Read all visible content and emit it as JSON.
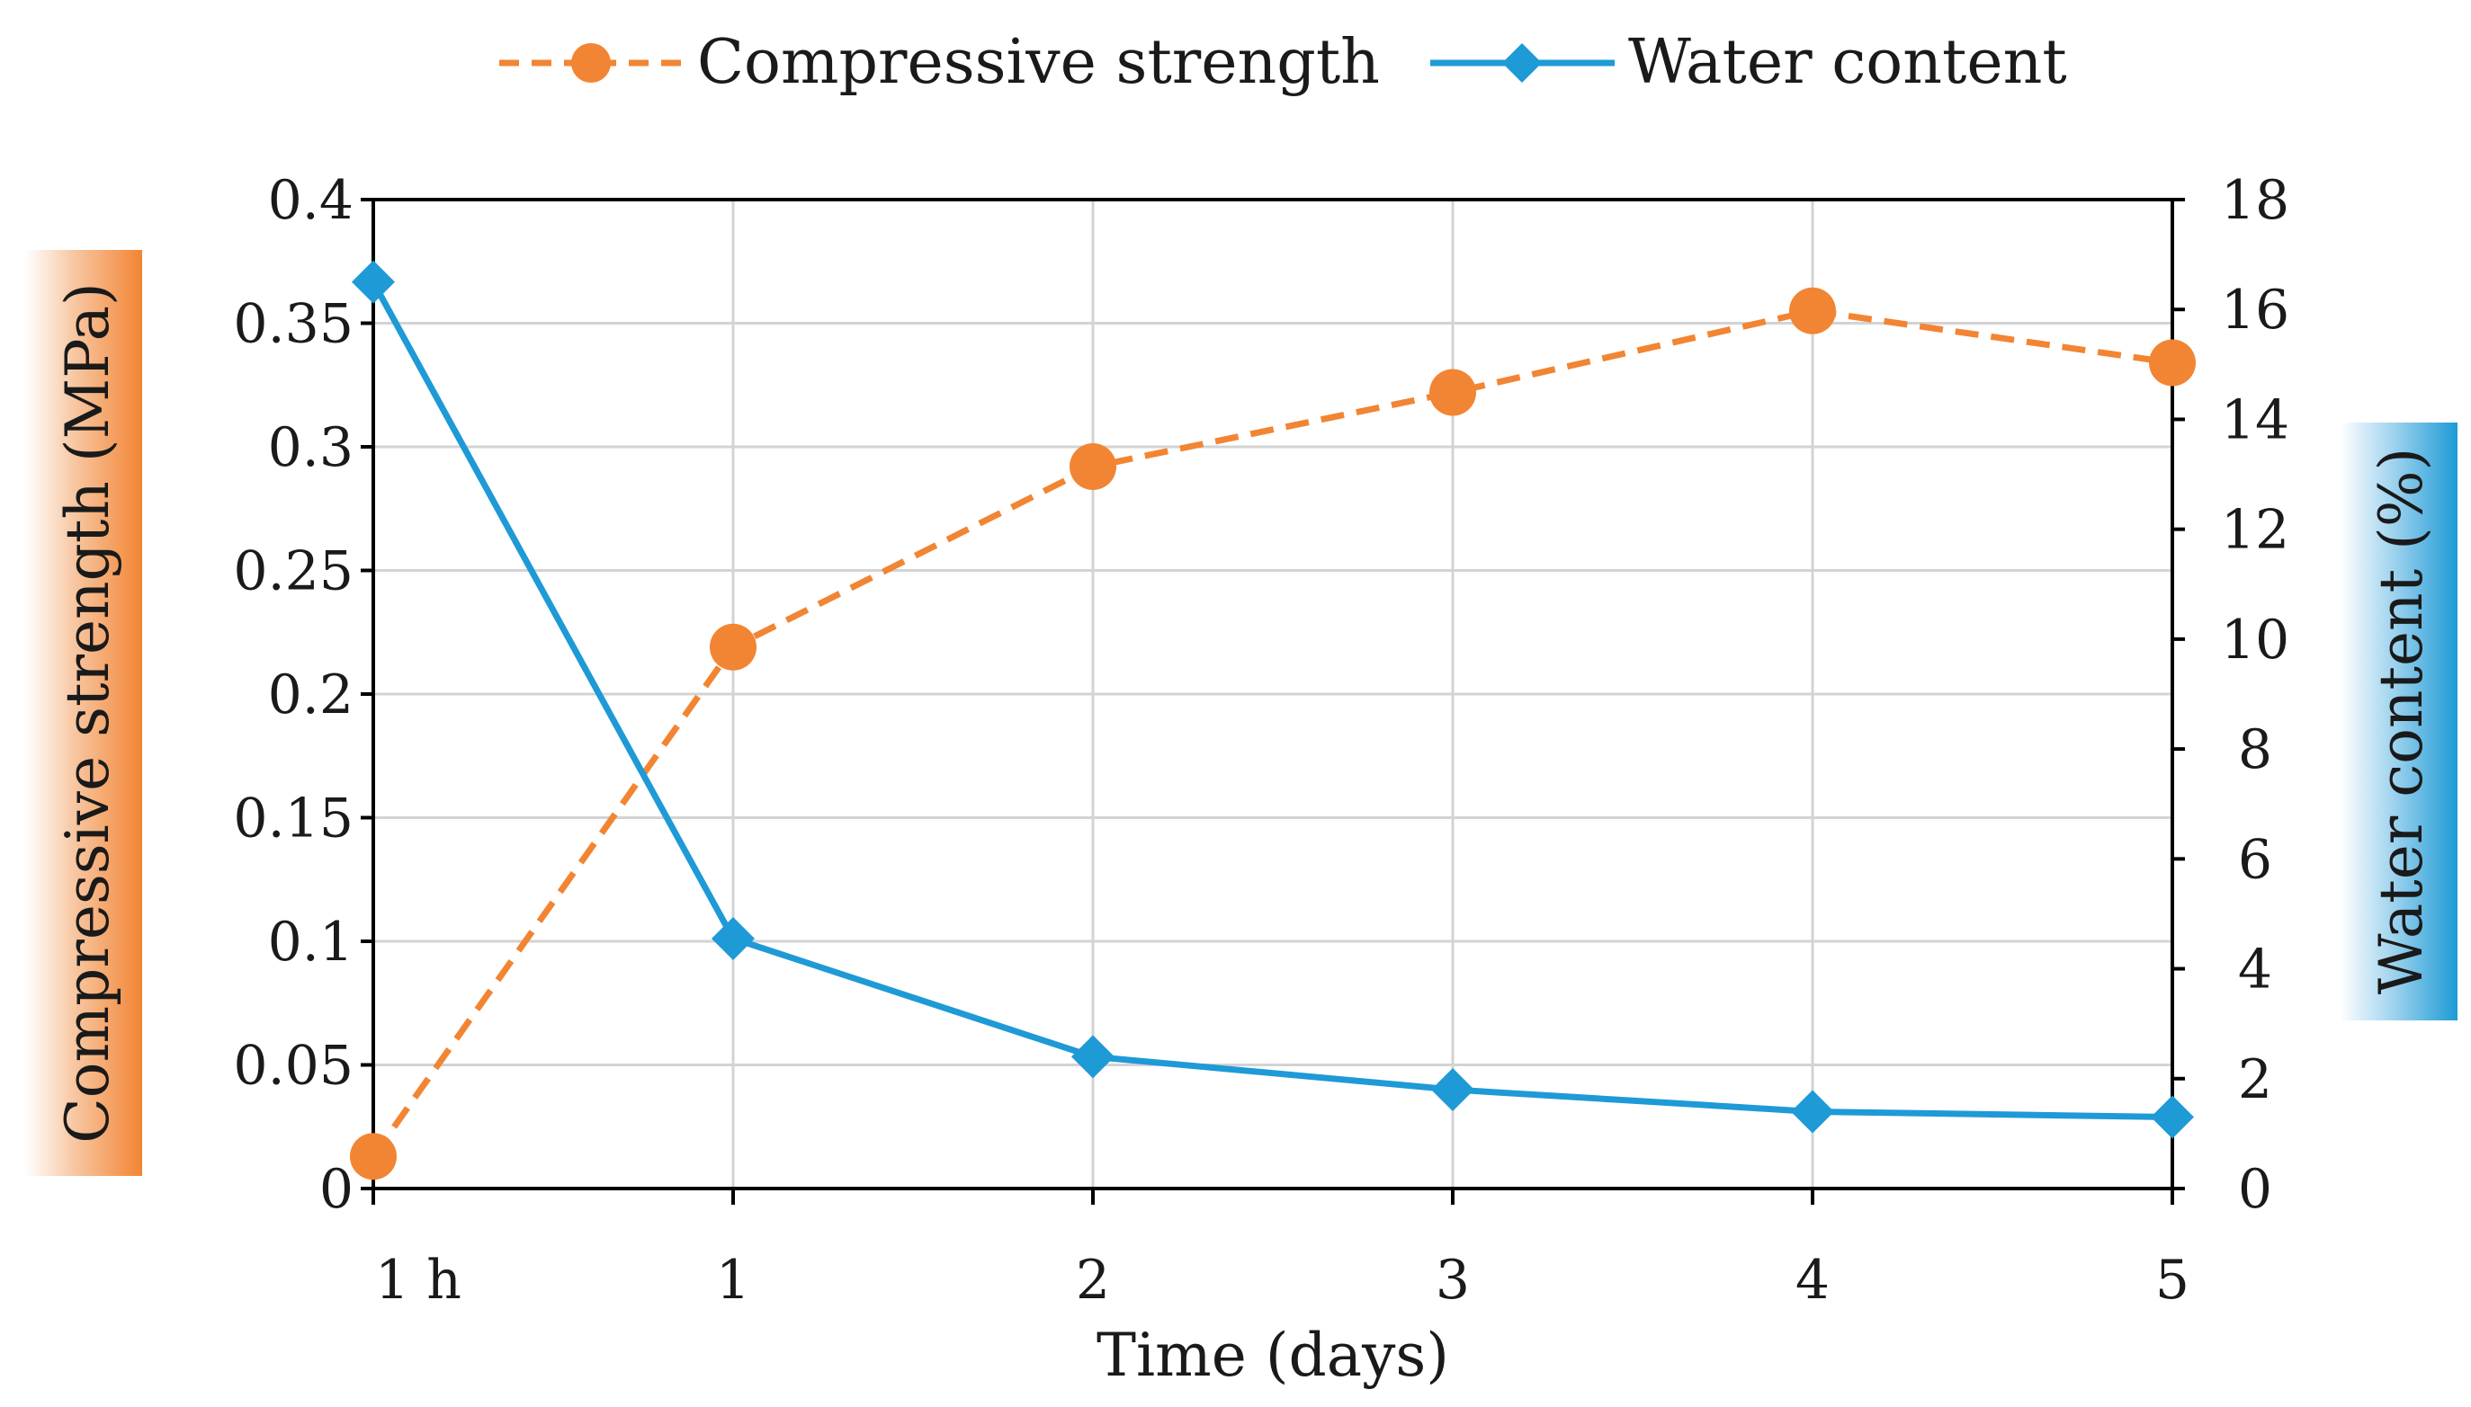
{
  "chart_data": {
    "type": "line",
    "title": "",
    "xlabel": "Time (days)",
    "categories": [
      "1 h",
      "1",
      "2",
      "3",
      "4",
      "5"
    ],
    "ylabel_left": "Compressive strength (MPa)",
    "ylabel_right": "Water content (%)",
    "ylim_left": [
      0,
      0.4
    ],
    "ylim_right": [
      0,
      18
    ],
    "yticks_left": [
      "0",
      "0.05",
      "0.1",
      "0.15",
      "0.2",
      "0.25",
      "0.3",
      "0.35",
      "0.4"
    ],
    "yticks_right": [
      "0",
      "2",
      "4",
      "6",
      "8",
      "10",
      "12",
      "14",
      "16",
      "18"
    ],
    "grid": true,
    "legend_position": "top-center",
    "series": [
      {
        "name": "Compressive strength",
        "axis": "left",
        "style": "dashed",
        "marker": "circle",
        "color": "#F28533",
        "values": [
          0.013,
          0.219,
          0.292,
          0.322,
          0.355,
          0.334
        ]
      },
      {
        "name": "Water content",
        "axis": "right",
        "style": "solid",
        "marker": "diamond",
        "color": "#1E9AD6",
        "values": [
          16.5,
          4.55,
          2.4,
          1.8,
          1.4,
          1.3
        ]
      }
    ],
    "axis_label_colors": {
      "left": "#F28533",
      "right": "#1E9AD6"
    }
  }
}
